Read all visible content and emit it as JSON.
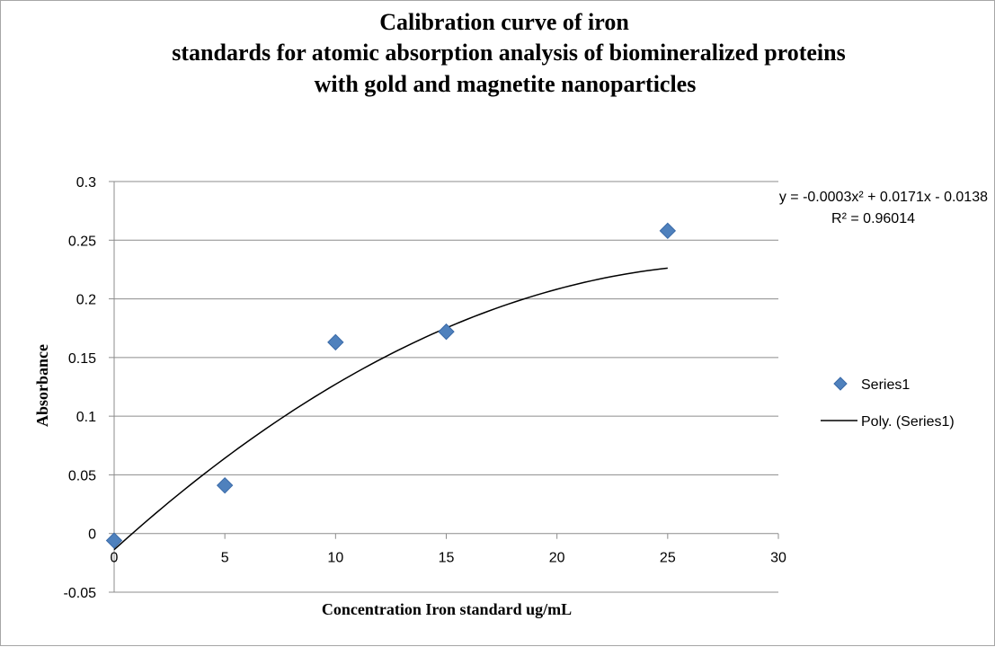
{
  "chart_data": {
    "type": "scatter",
    "title": [
      "Calibration curve of iron",
      "standards for atomic absorption analysis of biomineralized proteins",
      "with gold and magnetite nanoparticles"
    ],
    "xlabel": "Concentration Iron standard ug/mL",
    "ylabel": "Absorbance",
    "xlim": [
      0,
      30
    ],
    "ylim": [
      -0.05,
      0.3
    ],
    "x_ticks": [
      0,
      5,
      10,
      15,
      20,
      25,
      30
    ],
    "y_ticks": [
      -0.05,
      0,
      0.05,
      0.1,
      0.15,
      0.2,
      0.25,
      0.3
    ],
    "x_tick_labels": [
      "0",
      "5",
      "10",
      "15",
      "20",
      "25",
      "30"
    ],
    "y_tick_labels": [
      "-0.05",
      "0",
      "0.05",
      "0.1",
      "0.15",
      "0.2",
      "0.25",
      "0.3"
    ],
    "grid": "horizontal",
    "legend": "right",
    "series": [
      {
        "name": "Series1",
        "x": [
          0,
          5,
          10,
          15,
          25
        ],
        "y": [
          -0.006,
          0.041,
          0.163,
          0.172,
          0.258
        ],
        "marker": "diamond",
        "color": "#4f81bd"
      }
    ],
    "trendline": {
      "name": "Poly. (Series1)",
      "type": "polynomial",
      "coefficients": [
        -0.0003,
        0.0171,
        -0.0138
      ],
      "x_range": [
        0,
        25
      ],
      "color": "#000000",
      "equation": "y = -0.0003x² + 0.0171x - 0.0138",
      "r_squared": "R² = 0.96014"
    }
  }
}
